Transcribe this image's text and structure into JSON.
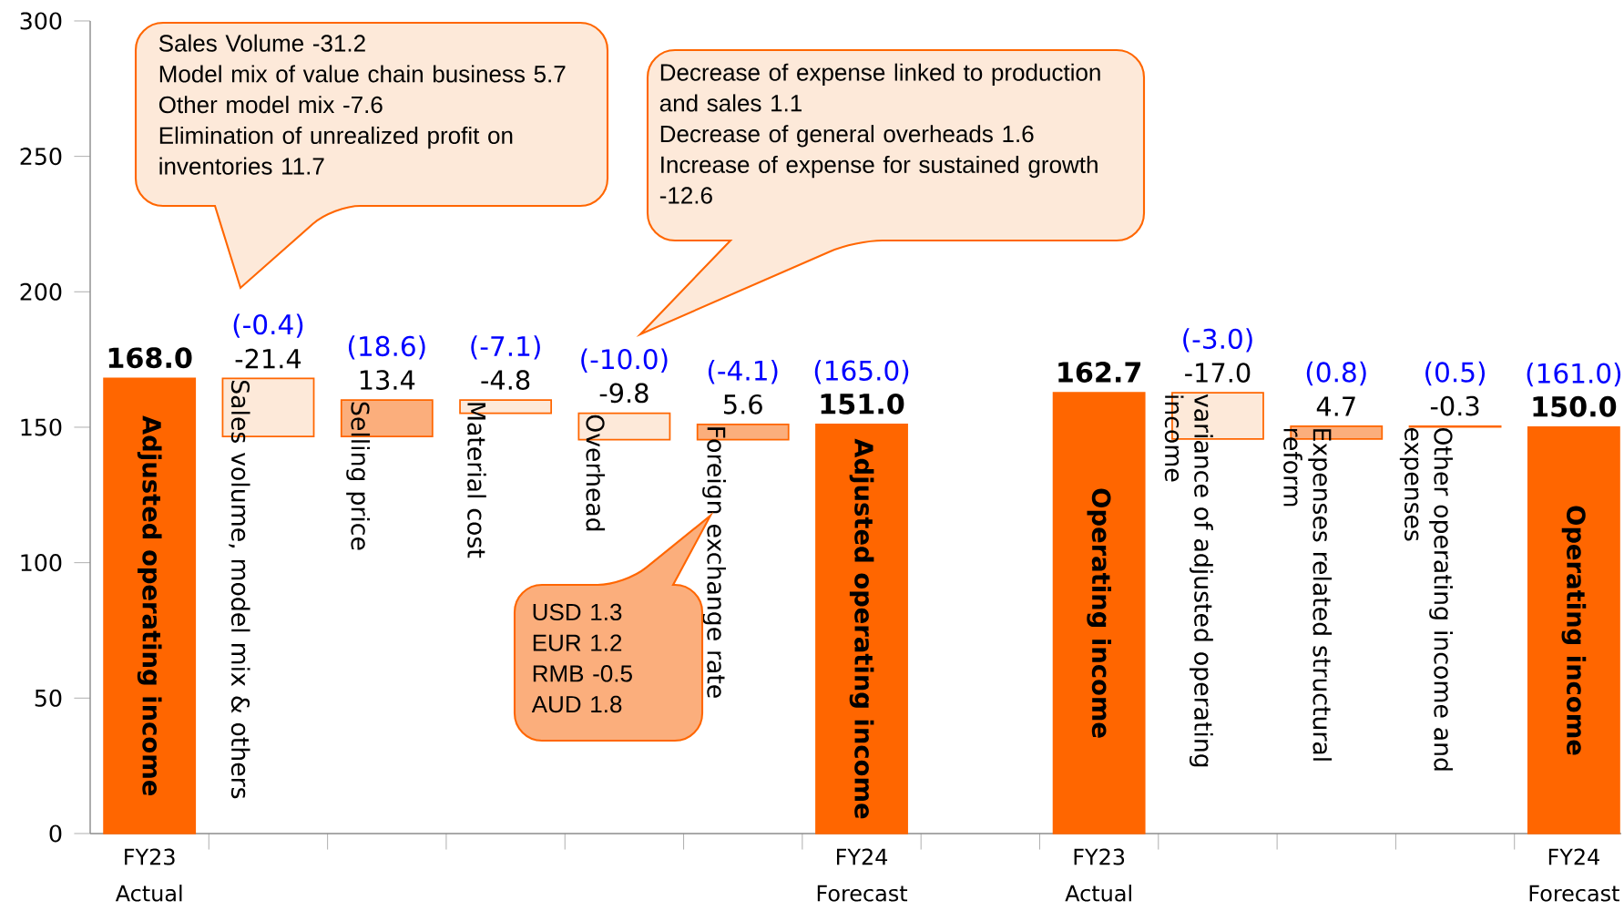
{
  "chart_data": {
    "type": "bar",
    "categories": [
      "Adjusted operating income",
      "Sales volume, model mix & others",
      "Selling price",
      "Material cost",
      "Overhead",
      "Foreign exchange rate",
      "Adjusted operating income",
      null,
      "Operating income",
      "variance of adjusted operating income",
      "Expenses related structural reform",
      "Other operating income and expenses",
      "Operating income"
    ],
    "values": [
      168.0,
      -21.4,
      13.4,
      -4.8,
      -9.8,
      5.6,
      151.0,
      null,
      162.7,
      -17.0,
      4.7,
      -0.3,
      150.0
    ],
    "value_labels": [
      "168.0",
      "-21.4",
      "13.4",
      "-4.8",
      "-9.8",
      "5.6",
      "151.0",
      null,
      "162.7",
      "-17.0",
      "4.7",
      "-0.3",
      "150.0"
    ],
    "base": [
      0,
      168.0,
      146.6,
      160.0,
      155.2,
      145.4,
      0,
      null,
      0,
      162.7,
      145.7,
      150.4,
      0
    ],
    "colors": [
      "#ff6600",
      "#fde9d9",
      "#fbae7c",
      "#fde9d9",
      "#fde9d9",
      "#fbae7c",
      "#ff6600",
      null,
      "#ff6600",
      "#fde9d9",
      "#fbae7c",
      "#fde9d9",
      "#ff6600"
    ],
    "ylim": [
      0,
      300
    ],
    "yticks": [
      0,
      50,
      100,
      150,
      200,
      250,
      300
    ],
    "annotations": [
      "FY23 Actual",
      "FY24 Forecast",
      "FY23 Actual",
      "FY24 Forecast",
      "(-0.4)",
      "(18.6)",
      "(-7.1)",
      "(-10.0)",
      "(-4.1)",
      "(165.0)",
      "(-3.0)",
      "(0.8)",
      "(0.5)",
      "(161.0)",
      "Sales Volume -31.2",
      "Model mix of value chain business 5.7",
      "Other model mix -7.6",
      "Elimination of unrealized profit on inventories 11.7",
      "Decrease of expense linked to production and sales 1.1",
      "Decrease of general overheads 1.6",
      "Increase of expense for sustained growth -12.6",
      "USD 1.3",
      "EUR 1.2",
      "RMB -0.5",
      "AUD 1.8"
    ]
  }
}
